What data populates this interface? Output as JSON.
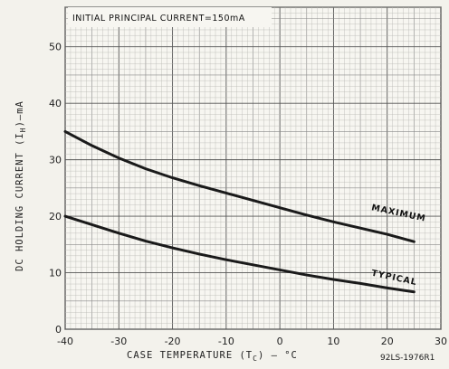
{
  "chart_data": {
    "type": "line",
    "annotation": "INITIAL PRINCIPAL CURRENT=150mA",
    "xlabel": "CASE TEMPERATURE (T",
    "xlabel_subscript": "C",
    "xlabel_suffix": ") — °C",
    "ylabel": "DC HOLDING CURRENT (I",
    "ylabel_subscript": "H",
    "ylabel_suffix": ")—mA",
    "figure_id": "92LS-1976R1",
    "xlim": [
      -40,
      30
    ],
    "ylim": [
      0,
      57
    ],
    "x_ticks": [
      -40,
      -30,
      -20,
      -10,
      0,
      10,
      20,
      30
    ],
    "y_ticks": [
      0,
      10,
      20,
      30,
      40,
      50
    ],
    "grid": true,
    "series": [
      {
        "name": "MAXIMUM",
        "color": "#1a1a1a",
        "x": [
          -40,
          -35,
          -30,
          -25,
          -20,
          -15,
          -10,
          -5,
          0,
          5,
          10,
          15,
          20,
          25
        ],
        "values": [
          35,
          32.5,
          30.3,
          28.4,
          26.8,
          25.4,
          24.1,
          22.8,
          21.5,
          20.2,
          19.0,
          17.9,
          16.8,
          15.5
        ]
      },
      {
        "name": "TYPICAL",
        "color": "#1a1a1a",
        "x": [
          -40,
          -35,
          -30,
          -25,
          -20,
          -15,
          -10,
          -5,
          0,
          5,
          10,
          15,
          20,
          25
        ],
        "values": [
          20,
          18.5,
          17.0,
          15.6,
          14.4,
          13.3,
          12.3,
          11.4,
          10.5,
          9.6,
          8.8,
          8.1,
          7.3,
          6.6
        ]
      }
    ]
  }
}
